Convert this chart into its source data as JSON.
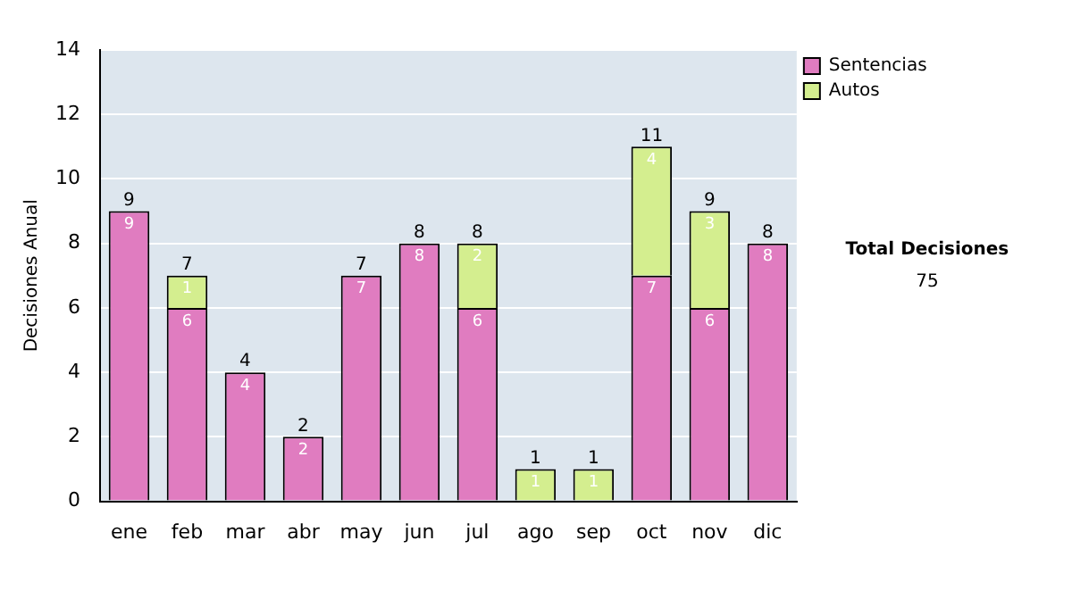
{
  "chart_data": {
    "type": "bar",
    "stacked": true,
    "ylabel": "Decisiones Anual",
    "categories": [
      "ene",
      "feb",
      "mar",
      "abr",
      "may",
      "jun",
      "jul",
      "ago",
      "sep",
      "oct",
      "nov",
      "dic"
    ],
    "series": [
      {
        "name": "Sentencias",
        "color": "#e07cc0",
        "values": [
          9,
          6,
          4,
          2,
          7,
          8,
          6,
          0,
          0,
          7,
          6,
          8
        ],
        "value_labels": [
          "9",
          "6",
          "4",
          "2",
          "7",
          "8",
          "6",
          null,
          null,
          "7",
          "6",
          "8"
        ]
      },
      {
        "name": "Autos",
        "color": "#d4ee8f",
        "values": [
          0,
          1,
          0,
          0,
          0,
          0,
          2,
          1,
          1,
          4,
          3,
          0
        ],
        "value_labels": [
          null,
          "1",
          null,
          null,
          null,
          null,
          "2",
          "1",
          "1",
          "4",
          "3",
          null
        ]
      }
    ],
    "totals": [
      "9",
      "7",
      "4",
      "2",
      "7",
      "8",
      "8",
      "1",
      "1",
      "11",
      "9",
      "8"
    ],
    "ylim": [
      0,
      14
    ],
    "yticks": [
      0,
      2,
      4,
      6,
      8,
      10,
      12,
      14
    ],
    "grid": "y",
    "legend": "right",
    "annotations": [
      "Total Decisiones",
      "75"
    ]
  }
}
